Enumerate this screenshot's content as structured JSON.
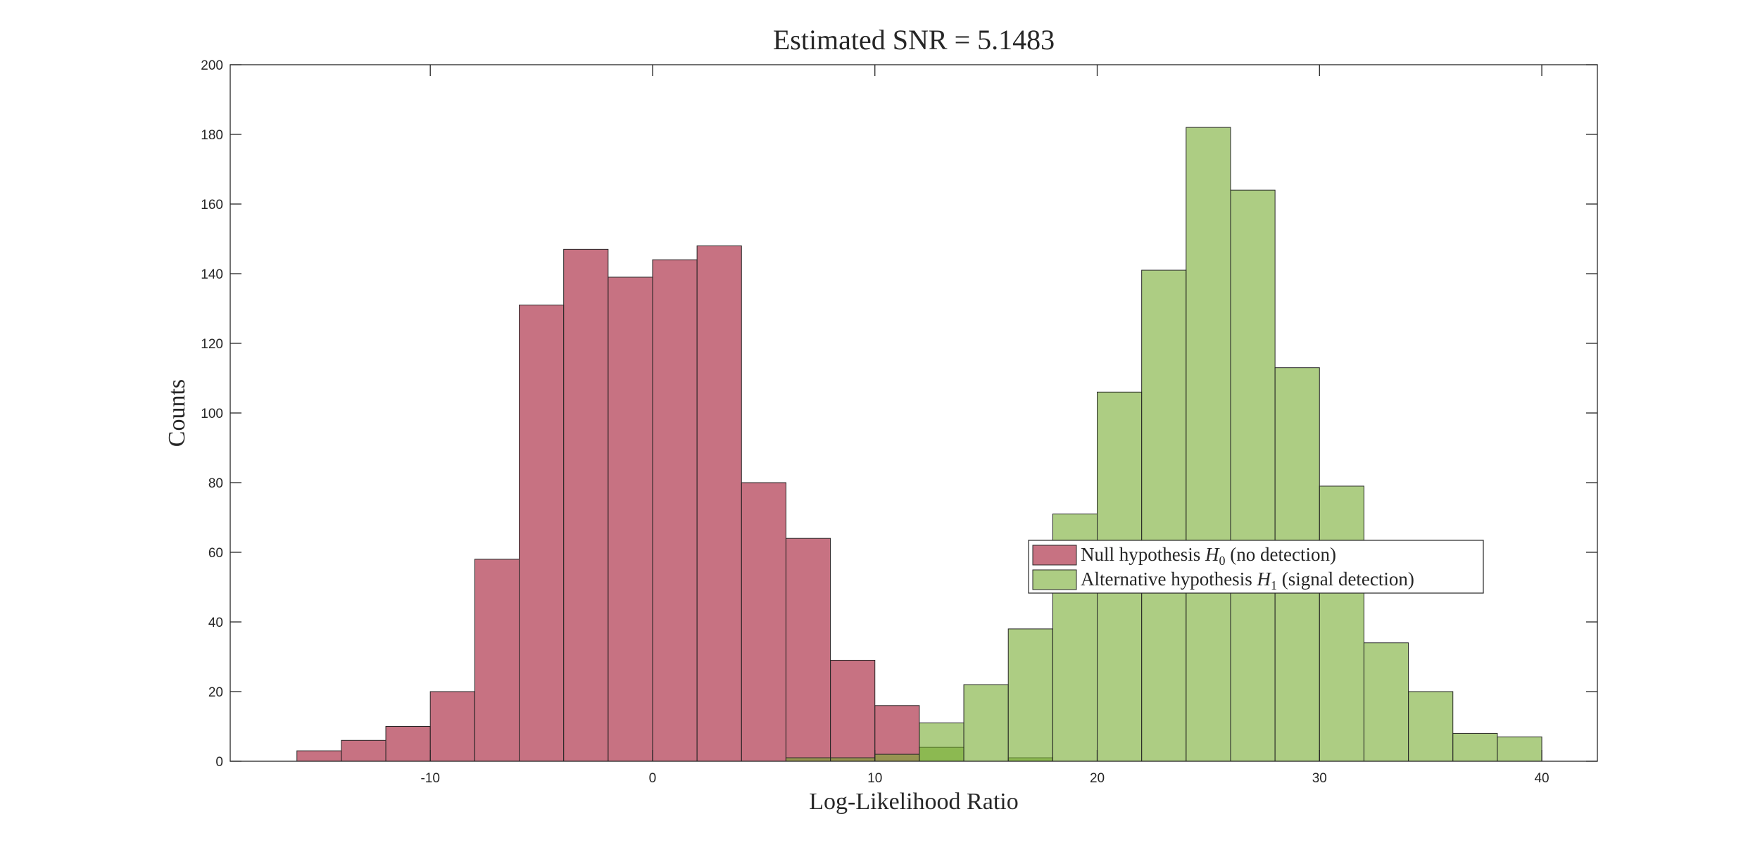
{
  "chart_data": {
    "type": "bar",
    "title": "Estimated SNR = 5.1483",
    "xlabel": "Log-Likelihood Ratio",
    "ylabel": "Counts",
    "xlim": [
      -19,
      42.5
    ],
    "ylim": [
      0,
      200
    ],
    "x_ticks": [
      -10,
      0,
      10,
      20,
      30,
      40
    ],
    "y_ticks": [
      0,
      20,
      40,
      60,
      80,
      100,
      120,
      140,
      160,
      180,
      200
    ],
    "bin_width": 2,
    "grid": false,
    "legend_position": "center-right",
    "series": [
      {
        "name_parts": [
          "Null hypothesis ",
          "H",
          "0",
          " (no detection)"
        ],
        "color": "#A2142F",
        "opacity": 0.6,
        "bin_starts": [
          -16,
          -14,
          -12,
          -10,
          -8,
          -6,
          -4,
          -2,
          0,
          2,
          4,
          6,
          8,
          10
        ],
        "values": [
          3,
          6,
          10,
          20,
          58,
          131,
          147,
          139,
          144,
          148,
          80,
          64,
          29,
          16
        ]
      },
      {
        "name_parts": [
          "Alternative hypothesis ",
          "H",
          "1",
          " (signal detection)"
        ],
        "color": "#77AC30",
        "opacity": 0.6,
        "bin_starts": [
          6,
          8,
          10,
          12,
          14,
          16,
          18,
          20,
          22,
          24,
          26,
          28,
          30,
          32,
          34,
          36,
          38
        ],
        "values": [
          1,
          1,
          2,
          4,
          0,
          1,
          0,
          0,
          0,
          0,
          0,
          0,
          0,
          0,
          0,
          0,
          0
        ],
        "hidden_under_null": true
      },
      {
        "name_parts": [
          "Alternative hypothesis ",
          "H",
          "1",
          " (signal detection)"
        ],
        "color": "#77AC30",
        "opacity": 0.6,
        "bin_starts": [
          12,
          14,
          16,
          18,
          20,
          22,
          24,
          26,
          28,
          30,
          32,
          34,
          36,
          38
        ],
        "values": [
          11,
          22,
          38,
          71,
          106,
          141,
          182,
          164,
          113,
          79,
          34,
          20,
          8,
          7
        ]
      }
    ]
  }
}
